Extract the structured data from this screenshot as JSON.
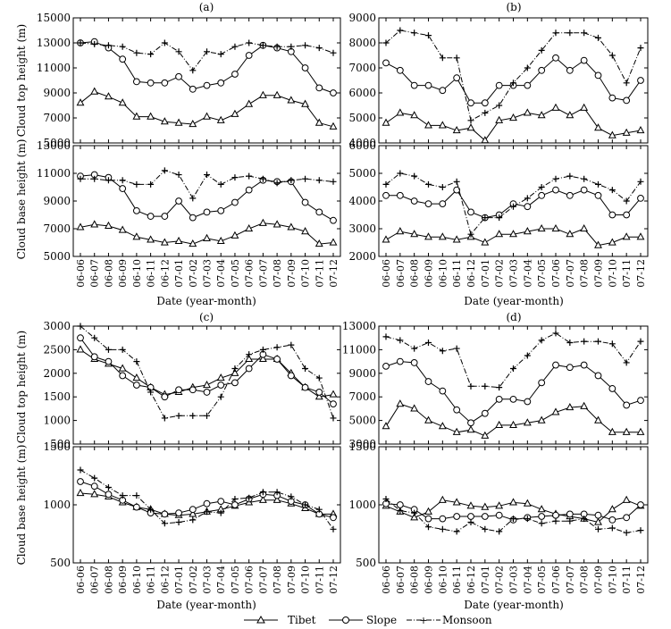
{
  "x_labels": [
    "06-06",
    "06-07",
    "06-08",
    "06-09",
    "06-10",
    "06-11",
    "06-12",
    "07-01",
    "07-02",
    "07-03",
    "07-04",
    "07-05",
    "07-06",
    "07-07",
    "07-08",
    "07-09",
    "07-10",
    "07-11",
    "07-12"
  ],
  "xlabel": "Date (year-month)",
  "legend": {
    "tibet": "Tibet",
    "slope": "Slope",
    "monsoon": "Monsoon"
  },
  "colors": {
    "line": "#000000",
    "background": "#ffffff"
  },
  "chart_data": [
    {
      "type": "line",
      "panel": "(a)",
      "title": "(a)",
      "top": {
        "ylabel": "Cloud top height (m)",
        "ylim": [
          5000,
          15000
        ],
        "yticks": [
          5000,
          7000,
          9000,
          11000,
          13000,
          15000
        ],
        "series": [
          {
            "name": "Tibet",
            "values": [
              8200,
              9100,
              8700,
              8200,
              7100,
              7100,
              6700,
              6600,
              6500,
              7100,
              6800,
              7300,
              8100,
              8800,
              8800,
              8400,
              8100,
              6600,
              6300
            ]
          },
          {
            "name": "Slope",
            "values": [
              13000,
              13100,
              12600,
              11700,
              9900,
              9800,
              9800,
              10300,
              9300,
              9600,
              9800,
              10500,
              12000,
              12800,
              12600,
              12300,
              11000,
              9400,
              9000
            ]
          },
          {
            "name": "Monsoon",
            "values": [
              13000,
              12900,
              12800,
              12700,
              12200,
              12100,
              13000,
              12300,
              10800,
              12300,
              12100,
              12700,
              13000,
              12800,
              12700,
              12700,
              12800,
              12600,
              12200
            ]
          }
        ]
      },
      "base": {
        "ylabel": "Cloud base height (m)",
        "ylim": [
          5000,
          13000
        ],
        "yticks": [
          5000,
          7000,
          9000,
          11000,
          13000
        ],
        "series": [
          {
            "name": "Tibet",
            "values": [
              7100,
              7300,
              7200,
              6900,
              6400,
              6200,
              6000,
              6100,
              5900,
              6300,
              6100,
              6500,
              7000,
              7400,
              7300,
              7100,
              6800,
              5900,
              6000
            ]
          },
          {
            "name": "Slope",
            "values": [
              10800,
              10900,
              10700,
              9900,
              8300,
              7900,
              7900,
              9000,
              7800,
              8200,
              8300,
              8900,
              9800,
              10500,
              10400,
              10400,
              8900,
              8200,
              7600
            ]
          },
          {
            "name": "Monsoon",
            "values": [
              10600,
              10600,
              10500,
              10500,
              10200,
              10200,
              11200,
              10900,
              9200,
              10900,
              10200,
              10700,
              10800,
              10600,
              10300,
              10500,
              10600,
              10500,
              10400
            ]
          }
        ]
      }
    },
    {
      "type": "line",
      "panel": "(b)",
      "title": "(b)",
      "top": {
        "ylabel": "",
        "ylim": [
          4000,
          9000
        ],
        "yticks": [
          4000,
          5000,
          6000,
          7000,
          8000,
          9000
        ],
        "series": [
          {
            "name": "Tibet",
            "values": [
              4800,
              5200,
              5100,
              4700,
              4700,
              4500,
              4600,
              4100,
              4900,
              5000,
              5200,
              5100,
              5400,
              5100,
              5400,
              4600,
              4300,
              4400,
              4500
            ]
          },
          {
            "name": "Slope",
            "values": [
              7200,
              6900,
              6300,
              6300,
              6100,
              6600,
              5600,
              5600,
              6300,
              6300,
              6300,
              6900,
              7400,
              6900,
              7300,
              6700,
              5800,
              5700,
              6500
            ]
          },
          {
            "name": "Monsoon",
            "values": [
              8000,
              8500,
              8400,
              8300,
              7400,
              7400,
              4900,
              5200,
              5500,
              6400,
              7000,
              7700,
              8400,
              8400,
              8400,
              8200,
              7500,
              6400,
              7800
            ]
          }
        ]
      },
      "base": {
        "ylabel": "",
        "ylim": [
          2000,
          6000
        ],
        "yticks": [
          2000,
          3000,
          4000,
          5000,
          6000
        ],
        "series": [
          {
            "name": "Tibet",
            "values": [
              2600,
              2900,
              2800,
              2700,
              2700,
              2600,
              2700,
              2500,
              2800,
              2800,
              2900,
              3000,
              3000,
              2800,
              3000,
              2400,
              2500,
              2700,
              2700
            ]
          },
          {
            "name": "Slope",
            "values": [
              4200,
              4200,
              4000,
              3900,
              3900,
              4400,
              3600,
              3400,
              3500,
              3900,
              3800,
              4200,
              4400,
              4200,
              4400,
              4200,
              3500,
              3500,
              4100
            ]
          },
          {
            "name": "Monsoon",
            "values": [
              4600,
              5000,
              4900,
              4600,
              4500,
              4700,
              2800,
              3400,
              3400,
              3800,
              4100,
              4500,
              4800,
              4900,
              4800,
              4600,
              4400,
              4000,
              4700
            ]
          }
        ]
      }
    },
    {
      "type": "line",
      "panel": "(c)",
      "title": "(c)",
      "top": {
        "ylabel": "Cloud top height (m)",
        "ylim": [
          500,
          3000
        ],
        "yticks": [
          500,
          1000,
          1500,
          2000,
          2500,
          3000
        ],
        "series": [
          {
            "name": "Tibet",
            "values": [
              2500,
              2300,
              2200,
              2100,
              1900,
              1700,
              1550,
              1600,
              1700,
              1750,
              1900,
              2000,
              2300,
              2300,
              2300,
              2000,
              1700,
              1500,
              1550
            ]
          },
          {
            "name": "Slope",
            "values": [
              2750,
              2350,
              2250,
              1950,
              1750,
              1700,
              1500,
              1650,
              1650,
              1600,
              1750,
              1800,
              2100,
              2400,
              2300,
              1950,
              1700,
              1600,
              1350
            ]
          },
          {
            "name": "Monsoon",
            "values": [
              3000,
              2750,
              2500,
              2500,
              2250,
              1600,
              1050,
              1100,
              1100,
              1100,
              1500,
              2100,
              2400,
              2500,
              2550,
              2600,
              2100,
              1900,
              1050
            ]
          }
        ]
      },
      "base": {
        "ylabel": "Cloud base height (m)",
        "ylim": [
          500,
          1500
        ],
        "yticks": [
          500,
          1000,
          1500
        ],
        "series": [
          {
            "name": "Tibet",
            "values": [
              1100,
              1090,
              1070,
              1020,
              980,
              960,
              920,
              910,
              920,
              940,
              960,
              990,
              1020,
              1040,
              1040,
              1010,
              970,
              920,
              920
            ]
          },
          {
            "name": "Slope",
            "values": [
              1200,
              1160,
              1090,
              1040,
              980,
              930,
              920,
              930,
              960,
              1010,
              1030,
              1000,
              1050,
              1090,
              1080,
              1030,
              1000,
              920,
              890
            ]
          },
          {
            "name": "Monsoon",
            "values": [
              1300,
              1230,
              1150,
              1080,
              1080,
              960,
              840,
              850,
              870,
              940,
              930,
              1050,
              1060,
              1110,
              1110,
              1070,
              1000,
              960,
              790
            ]
          }
        ]
      }
    },
    {
      "type": "line",
      "panel": "(d)",
      "title": "(d)",
      "top": {
        "ylabel": "",
        "ylim": [
          3000,
          13000
        ],
        "yticks": [
          3000,
          5000,
          7000,
          9000,
          11000,
          13000
        ],
        "series": [
          {
            "name": "Tibet",
            "values": [
              4500,
              6400,
              6000,
              5000,
              4500,
              4000,
              4200,
              3700,
              4600,
              4600,
              4800,
              5000,
              5700,
              6100,
              6200,
              5000,
              4000,
              4000,
              4000
            ]
          },
          {
            "name": "Slope",
            "values": [
              9600,
              10000,
              9900,
              8300,
              7500,
              5900,
              4800,
              5600,
              6800,
              6800,
              6600,
              8200,
              9700,
              9500,
              9700,
              8800,
              7700,
              6300,
              6700
            ]
          },
          {
            "name": "Monsoon",
            "values": [
              12100,
              11800,
              11100,
              11600,
              10900,
              11100,
              7900,
              7900,
              7800,
              9400,
              10500,
              11800,
              12400,
              11600,
              11700,
              11700,
              11500,
              9900,
              11700
            ]
          }
        ]
      },
      "base": {
        "ylabel": "",
        "ylim": [
          500,
          1500
        ],
        "yticks": [
          500,
          1000,
          1500
        ],
        "series": [
          {
            "name": "Tibet",
            "values": [
              990,
              940,
              890,
              940,
              1040,
              1020,
              990,
              980,
              990,
              1020,
              1010,
              960,
              920,
              900,
              880,
              850,
              960,
              1040,
              990
            ]
          },
          {
            "name": "Slope",
            "values": [
              1010,
              1000,
              960,
              880,
              880,
              900,
              900,
              900,
              910,
              870,
              890,
              900,
              910,
              920,
              920,
              910,
              870,
              890,
              1000
            ]
          },
          {
            "name": "Monsoon",
            "values": [
              1050,
              950,
              930,
              810,
              790,
              770,
              850,
              790,
              770,
              880,
              880,
              840,
              860,
              860,
              880,
              790,
              800,
              760,
              780
            ]
          }
        ]
      }
    }
  ]
}
